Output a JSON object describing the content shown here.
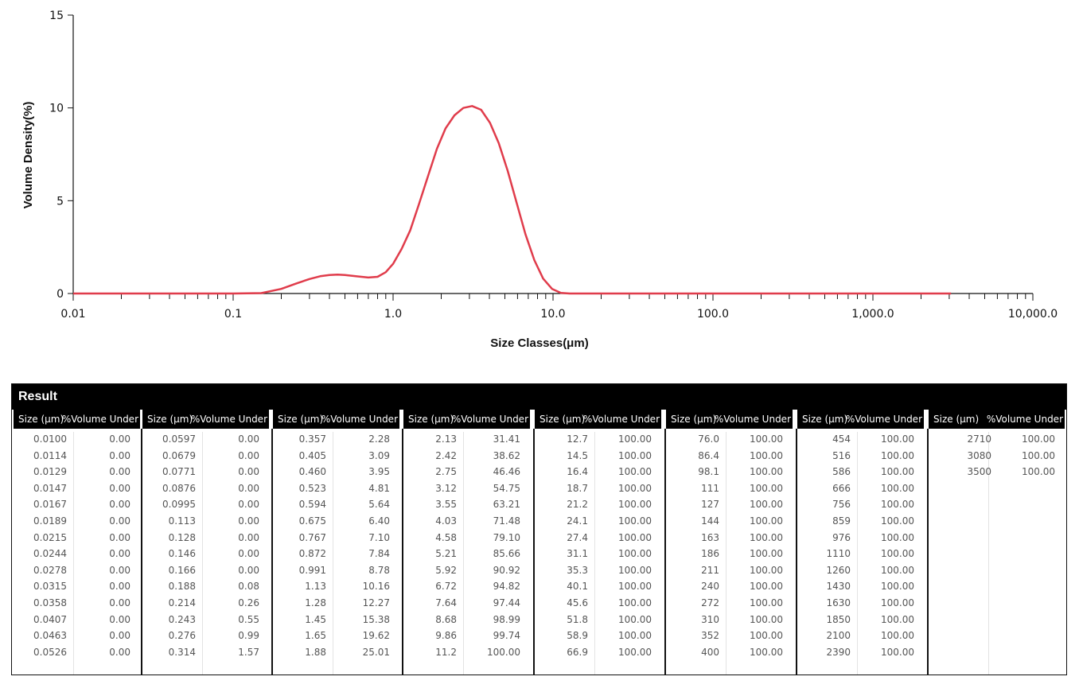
{
  "chart_data": {
    "type": "line",
    "xlabel": "Size Classes(μm)",
    "ylabel": "Volume Density(%)",
    "xscale": "log",
    "xlim": [
      0.01,
      10000
    ],
    "ylim": [
      0,
      15
    ],
    "x_tick_labels": [
      "0.01",
      "0.1",
      "1.0",
      "10.0",
      "100.0",
      "1,000.0",
      "10,000.0"
    ],
    "y_tick_labels": [
      "0",
      "5",
      "10",
      "15"
    ],
    "line_color": "#e03c4b",
    "series": [
      {
        "x": [
          0.01,
          0.05,
          0.1,
          0.15,
          0.2,
          0.25,
          0.3,
          0.35,
          0.4,
          0.45,
          0.5,
          0.6,
          0.7,
          0.8,
          0.9,
          1.0,
          1.13,
          1.28,
          1.45,
          1.65,
          1.88,
          2.13,
          2.42,
          2.75,
          3.12,
          3.55,
          4.03,
          4.58,
          5.21,
          5.92,
          6.72,
          7.64,
          8.68,
          9.86,
          11.2,
          12.7,
          14.5,
          100,
          1000,
          3080
        ],
        "y": [
          0,
          0,
          0,
          0.02,
          0.25,
          0.55,
          0.78,
          0.93,
          1.0,
          1.02,
          1.0,
          0.92,
          0.86,
          0.9,
          1.15,
          1.6,
          2.4,
          3.4,
          4.8,
          6.3,
          7.8,
          8.9,
          9.6,
          10.0,
          10.1,
          9.9,
          9.2,
          8.1,
          6.6,
          4.9,
          3.2,
          1.8,
          0.8,
          0.25,
          0.03,
          0,
          0,
          0,
          0,
          0
        ]
      }
    ]
  },
  "result": {
    "title": "Result",
    "col_size_label": "Size (μm)",
    "col_volume_label": "%Volume Under",
    "groups": [
      {
        "rows": [
          [
            "0.0100",
            "0.00"
          ],
          [
            "0.0114",
            "0.00"
          ],
          [
            "0.0129",
            "0.00"
          ],
          [
            "0.0147",
            "0.00"
          ],
          [
            "0.0167",
            "0.00"
          ],
          [
            "0.0189",
            "0.00"
          ],
          [
            "0.0215",
            "0.00"
          ],
          [
            "0.0244",
            "0.00"
          ],
          [
            "0.0278",
            "0.00"
          ],
          [
            "0.0315",
            "0.00"
          ],
          [
            "0.0358",
            "0.00"
          ],
          [
            "0.0407",
            "0.00"
          ],
          [
            "0.0463",
            "0.00"
          ],
          [
            "0.0526",
            "0.00"
          ]
        ]
      },
      {
        "rows": [
          [
            "0.0597",
            "0.00"
          ],
          [
            "0.0679",
            "0.00"
          ],
          [
            "0.0771",
            "0.00"
          ],
          [
            "0.0876",
            "0.00"
          ],
          [
            "0.0995",
            "0.00"
          ],
          [
            "0.113",
            "0.00"
          ],
          [
            "0.128",
            "0.00"
          ],
          [
            "0.146",
            "0.00"
          ],
          [
            "0.166",
            "0.00"
          ],
          [
            "0.188",
            "0.08"
          ],
          [
            "0.214",
            "0.26"
          ],
          [
            "0.243",
            "0.55"
          ],
          [
            "0.276",
            "0.99"
          ],
          [
            "0.314",
            "1.57"
          ]
        ]
      },
      {
        "rows": [
          [
            "0.357",
            "2.28"
          ],
          [
            "0.405",
            "3.09"
          ],
          [
            "0.460",
            "3.95"
          ],
          [
            "0.523",
            "4.81"
          ],
          [
            "0.594",
            "5.64"
          ],
          [
            "0.675",
            "6.40"
          ],
          [
            "0.767",
            "7.10"
          ],
          [
            "0.872",
            "7.84"
          ],
          [
            "0.991",
            "8.78"
          ],
          [
            "1.13",
            "10.16"
          ],
          [
            "1.28",
            "12.27"
          ],
          [
            "1.45",
            "15.38"
          ],
          [
            "1.65",
            "19.62"
          ],
          [
            "1.88",
            "25.01"
          ]
        ]
      },
      {
        "rows": [
          [
            "2.13",
            "31.41"
          ],
          [
            "2.42",
            "38.62"
          ],
          [
            "2.75",
            "46.46"
          ],
          [
            "3.12",
            "54.75"
          ],
          [
            "3.55",
            "63.21"
          ],
          [
            "4.03",
            "71.48"
          ],
          [
            "4.58",
            "79.10"
          ],
          [
            "5.21",
            "85.66"
          ],
          [
            "5.92",
            "90.92"
          ],
          [
            "6.72",
            "94.82"
          ],
          [
            "7.64",
            "97.44"
          ],
          [
            "8.68",
            "98.99"
          ],
          [
            "9.86",
            "99.74"
          ],
          [
            "11.2",
            "100.00"
          ]
        ]
      },
      {
        "rows": [
          [
            "12.7",
            "100.00"
          ],
          [
            "14.5",
            "100.00"
          ],
          [
            "16.4",
            "100.00"
          ],
          [
            "18.7",
            "100.00"
          ],
          [
            "21.2",
            "100.00"
          ],
          [
            "24.1",
            "100.00"
          ],
          [
            "27.4",
            "100.00"
          ],
          [
            "31.1",
            "100.00"
          ],
          [
            "35.3",
            "100.00"
          ],
          [
            "40.1",
            "100.00"
          ],
          [
            "45.6",
            "100.00"
          ],
          [
            "51.8",
            "100.00"
          ],
          [
            "58.9",
            "100.00"
          ],
          [
            "66.9",
            "100.00"
          ]
        ]
      },
      {
        "rows": [
          [
            "76.0",
            "100.00"
          ],
          [
            "86.4",
            "100.00"
          ],
          [
            "98.1",
            "100.00"
          ],
          [
            "111",
            "100.00"
          ],
          [
            "127",
            "100.00"
          ],
          [
            "144",
            "100.00"
          ],
          [
            "163",
            "100.00"
          ],
          [
            "186",
            "100.00"
          ],
          [
            "211",
            "100.00"
          ],
          [
            "240",
            "100.00"
          ],
          [
            "272",
            "100.00"
          ],
          [
            "310",
            "100.00"
          ],
          [
            "352",
            "100.00"
          ],
          [
            "400",
            "100.00"
          ]
        ]
      },
      {
        "rows": [
          [
            "454",
            "100.00"
          ],
          [
            "516",
            "100.00"
          ],
          [
            "586",
            "100.00"
          ],
          [
            "666",
            "100.00"
          ],
          [
            "756",
            "100.00"
          ],
          [
            "859",
            "100.00"
          ],
          [
            "976",
            "100.00"
          ],
          [
            "1110",
            "100.00"
          ],
          [
            "1260",
            "100.00"
          ],
          [
            "1430",
            "100.00"
          ],
          [
            "1630",
            "100.00"
          ],
          [
            "1850",
            "100.00"
          ],
          [
            "2100",
            "100.00"
          ],
          [
            "2390",
            "100.00"
          ]
        ]
      },
      {
        "rows": [
          [
            "2710",
            "100.00"
          ],
          [
            "3080",
            "100.00"
          ],
          [
            "3500",
            "100.00"
          ]
        ]
      }
    ]
  }
}
